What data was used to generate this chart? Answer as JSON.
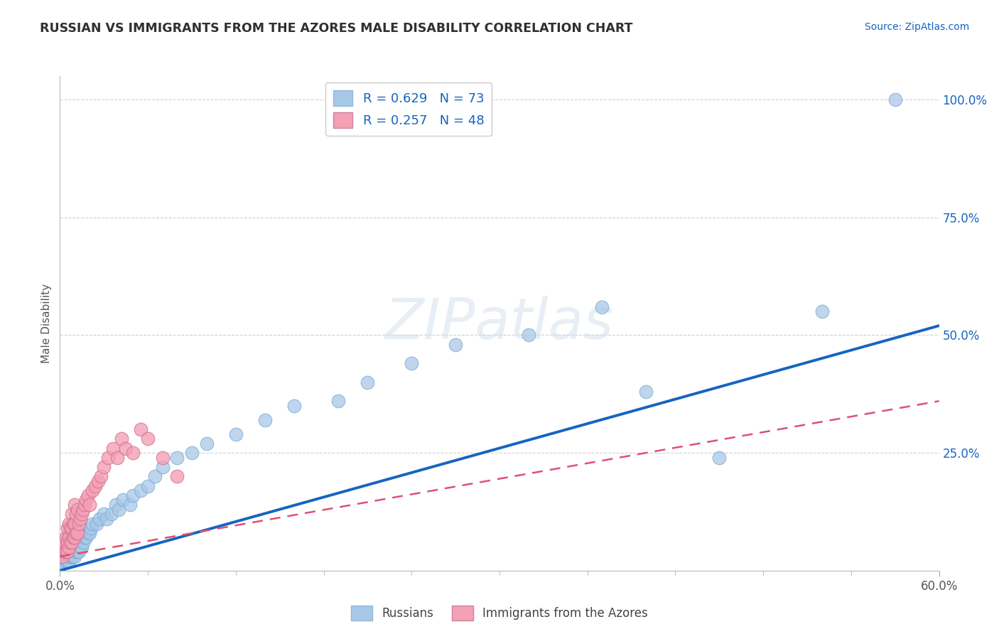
{
  "title": "RUSSIAN VS IMMIGRANTS FROM THE AZORES MALE DISABILITY CORRELATION CHART",
  "source": "Source: ZipAtlas.com",
  "xlim": [
    0.0,
    0.6
  ],
  "ylim": [
    0.0,
    1.05
  ],
  "ylabel": "Male Disability",
  "series1_label": "Russians",
  "series2_label": "Immigrants from the Azores",
  "series1_R": "0.629",
  "series1_N": "73",
  "series2_R": "0.257",
  "series2_N": "48",
  "series1_color": "#a8c8e8",
  "series2_color": "#f4a0b5",
  "line1_color": "#1565c0",
  "line2_color": "#e05070",
  "background_color": "#ffffff",
  "title_color": "#303030",
  "legend_text_color": "#1565c0",
  "line1_x0": 0.0,
  "line1_y0": 0.0,
  "line1_x1": 0.6,
  "line1_y1": 0.52,
  "line2_x0": 0.0,
  "line2_y0": 0.03,
  "line2_x1": 0.6,
  "line2_y1": 0.36,
  "series1_x": [
    0.002,
    0.003,
    0.003,
    0.004,
    0.004,
    0.004,
    0.005,
    0.005,
    0.005,
    0.005,
    0.006,
    0.006,
    0.006,
    0.006,
    0.007,
    0.007,
    0.007,
    0.007,
    0.008,
    0.008,
    0.008,
    0.009,
    0.009,
    0.009,
    0.01,
    0.01,
    0.01,
    0.011,
    0.011,
    0.012,
    0.012,
    0.013,
    0.013,
    0.014,
    0.015,
    0.015,
    0.016,
    0.017,
    0.018,
    0.019,
    0.02,
    0.021,
    0.022,
    0.025,
    0.027,
    0.03,
    0.032,
    0.035,
    0.038,
    0.04,
    0.043,
    0.048,
    0.05,
    0.055,
    0.06,
    0.065,
    0.07,
    0.08,
    0.09,
    0.1,
    0.12,
    0.14,
    0.16,
    0.19,
    0.21,
    0.24,
    0.27,
    0.32,
    0.37,
    0.4,
    0.45,
    0.52,
    0.57
  ],
  "series1_y": [
    0.02,
    0.03,
    0.04,
    0.02,
    0.04,
    0.06,
    0.02,
    0.03,
    0.05,
    0.07,
    0.02,
    0.04,
    0.06,
    0.08,
    0.03,
    0.05,
    0.07,
    0.09,
    0.03,
    0.05,
    0.07,
    0.03,
    0.05,
    0.08,
    0.03,
    0.06,
    0.09,
    0.04,
    0.07,
    0.04,
    0.08,
    0.04,
    0.07,
    0.05,
    0.05,
    0.08,
    0.06,
    0.07,
    0.07,
    0.08,
    0.08,
    0.09,
    0.1,
    0.1,
    0.11,
    0.12,
    0.11,
    0.12,
    0.14,
    0.13,
    0.15,
    0.14,
    0.16,
    0.17,
    0.18,
    0.2,
    0.22,
    0.24,
    0.25,
    0.27,
    0.29,
    0.32,
    0.35,
    0.36,
    0.4,
    0.44,
    0.48,
    0.5,
    0.56,
    0.38,
    0.24,
    0.55,
    1.0
  ],
  "series2_x": [
    0.002,
    0.003,
    0.003,
    0.004,
    0.004,
    0.005,
    0.005,
    0.005,
    0.006,
    0.006,
    0.006,
    0.007,
    0.007,
    0.008,
    0.008,
    0.008,
    0.009,
    0.009,
    0.01,
    0.01,
    0.01,
    0.011,
    0.011,
    0.012,
    0.012,
    0.013,
    0.014,
    0.015,
    0.016,
    0.017,
    0.018,
    0.019,
    0.02,
    0.022,
    0.024,
    0.026,
    0.028,
    0.03,
    0.033,
    0.036,
    0.039,
    0.042,
    0.045,
    0.05,
    0.055,
    0.06,
    0.07,
    0.08
  ],
  "series2_y": [
    0.03,
    0.04,
    0.06,
    0.04,
    0.07,
    0.04,
    0.06,
    0.09,
    0.05,
    0.07,
    0.1,
    0.06,
    0.09,
    0.06,
    0.09,
    0.12,
    0.07,
    0.1,
    0.07,
    0.1,
    0.14,
    0.08,
    0.12,
    0.08,
    0.13,
    0.1,
    0.11,
    0.12,
    0.13,
    0.14,
    0.15,
    0.16,
    0.14,
    0.17,
    0.18,
    0.19,
    0.2,
    0.22,
    0.24,
    0.26,
    0.24,
    0.28,
    0.26,
    0.25,
    0.3,
    0.28,
    0.24,
    0.2
  ]
}
